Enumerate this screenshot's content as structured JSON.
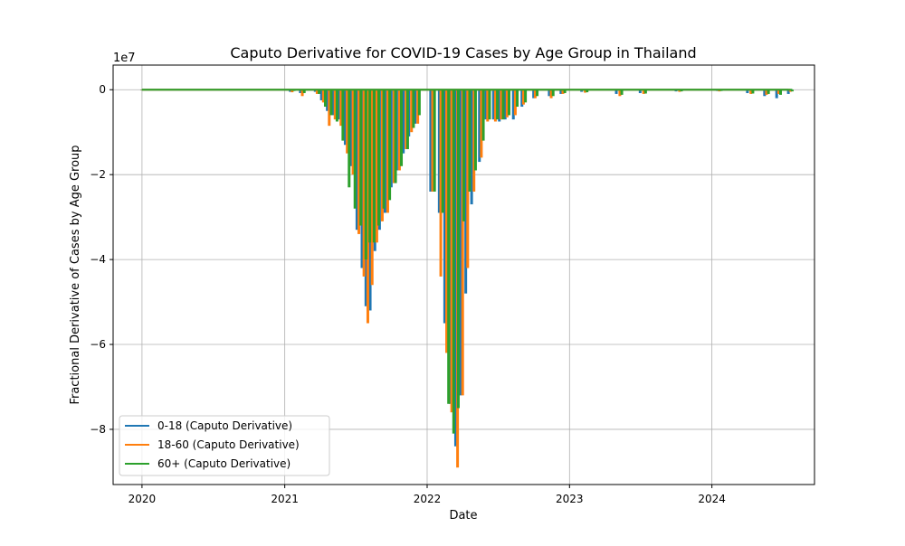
{
  "chart_data": {
    "type": "bar",
    "title": "Caputo Derivative for COVID-19 Cases by Age Group in Thailand",
    "xlabel": "Date",
    "ylabel": "Fractional Derivative of Cases by Age Group",
    "y_offset_label": "1e7",
    "y_scale": 10000000,
    "grid": true,
    "legend_position": "lower-left",
    "xlim": [
      "2019-10-19",
      "2024-09-20"
    ],
    "ylim": [
      -93000000,
      5800000
    ],
    "x_ticks": [
      {
        "date": "2020-01-01",
        "label": "2020"
      },
      {
        "date": "2021-01-01",
        "label": "2021"
      },
      {
        "date": "2022-01-01",
        "label": "2022"
      },
      {
        "date": "2023-01-01",
        "label": "2023"
      },
      {
        "date": "2024-01-01",
        "label": "2024"
      }
    ],
    "y_ticks": [
      {
        "value": 0,
        "label": "0"
      },
      {
        "value": -20000000,
        "label": "−2"
      },
      {
        "value": -40000000,
        "label": "−4"
      },
      {
        "value": -60000000,
        "label": "−6"
      },
      {
        "value": -80000000,
        "label": "−8"
      }
    ],
    "series": [
      {
        "name": "0-18 (Caputo Derivative)",
        "color": "#1f77b4",
        "points": [
          [
            "2020-01-01",
            0
          ],
          [
            "2020-06-01",
            0
          ],
          [
            "2020-12-20",
            0
          ],
          [
            "2021-01-15",
            -500000
          ],
          [
            "2021-02-10",
            -800000
          ],
          [
            "2021-03-20",
            -500000
          ],
          [
            "2021-04-05",
            -2500000
          ],
          [
            "2021-04-20",
            -5000000
          ],
          [
            "2021-05-05",
            -6000000
          ],
          [
            "2021-05-20",
            -7000000
          ],
          [
            "2021-06-05",
            -13000000
          ],
          [
            "2021-06-20",
            -18000000
          ],
          [
            "2021-07-05",
            -33000000
          ],
          [
            "2021-07-18",
            -42000000
          ],
          [
            "2021-07-28",
            -51000000
          ],
          [
            "2021-08-08",
            -52000000
          ],
          [
            "2021-08-20",
            -38000000
          ],
          [
            "2021-09-01",
            -33000000
          ],
          [
            "2021-09-15",
            -29000000
          ],
          [
            "2021-10-01",
            -23000000
          ],
          [
            "2021-10-15",
            -19000000
          ],
          [
            "2021-11-01",
            -15000000
          ],
          [
            "2021-11-15",
            -11000000
          ],
          [
            "2021-12-01",
            -8000000
          ],
          [
            "2022-01-10",
            -24000000
          ],
          [
            "2022-02-01",
            -29000000
          ],
          [
            "2022-02-15",
            -55000000
          ],
          [
            "2022-03-01",
            -74000000
          ],
          [
            "2022-03-15",
            -84000000
          ],
          [
            "2022-03-28",
            -72000000
          ],
          [
            "2022-04-10",
            -48000000
          ],
          [
            "2022-04-25",
            -27000000
          ],
          [
            "2022-05-15",
            -17000000
          ],
          [
            "2022-06-01",
            -7000000
          ],
          [
            "2022-06-20",
            -7000000
          ],
          [
            "2022-07-05",
            -7500000
          ],
          [
            "2022-07-20",
            -7000000
          ],
          [
            "2022-08-10",
            -7000000
          ],
          [
            "2022-09-01",
            -4000000
          ],
          [
            "2022-10-01",
            -2000000
          ],
          [
            "2022-11-10",
            -1500000
          ],
          [
            "2022-12-10",
            -1000000
          ],
          [
            "2023-02-01",
            -500000
          ],
          [
            "2023-05-01",
            -1000000
          ],
          [
            "2023-07-01",
            -800000
          ],
          [
            "2023-10-01",
            -400000
          ],
          [
            "2024-01-15",
            -300000
          ],
          [
            "2024-04-01",
            -800000
          ],
          [
            "2024-05-15",
            -1500000
          ],
          [
            "2024-06-15",
            -2000000
          ],
          [
            "2024-07-15",
            -1000000
          ]
        ]
      },
      {
        "name": "18-60 (Caputo Derivative)",
        "color": "#ff7f0e",
        "points": [
          [
            "2020-01-01",
            0
          ],
          [
            "2020-06-01",
            0
          ],
          [
            "2020-12-20",
            0
          ],
          [
            "2021-01-20",
            -600000
          ],
          [
            "2021-02-15",
            -1500000
          ],
          [
            "2021-03-25",
            -1000000
          ],
          [
            "2021-04-10",
            -3000000
          ],
          [
            "2021-04-25",
            -8500000
          ],
          [
            "2021-05-10",
            -7000000
          ],
          [
            "2021-05-25",
            -8500000
          ],
          [
            "2021-06-10",
            -15000000
          ],
          [
            "2021-06-25",
            -20000000
          ],
          [
            "2021-07-10",
            -34000000
          ],
          [
            "2021-07-23",
            -44000000
          ],
          [
            "2021-08-02",
            -55000000
          ],
          [
            "2021-08-13",
            -46000000
          ],
          [
            "2021-08-25",
            -36000000
          ],
          [
            "2021-09-08",
            -31000000
          ],
          [
            "2021-09-22",
            -29000000
          ],
          [
            "2021-10-08",
            -22000000
          ],
          [
            "2021-10-22",
            -19000000
          ],
          [
            "2021-11-08",
            -14000000
          ],
          [
            "2021-11-22",
            -10000000
          ],
          [
            "2021-12-08",
            -8000000
          ],
          [
            "2022-01-15",
            -24000000
          ],
          [
            "2022-02-05",
            -44000000
          ],
          [
            "2022-02-20",
            -62000000
          ],
          [
            "2022-03-05",
            -76000000
          ],
          [
            "2022-03-20",
            -89000000
          ],
          [
            "2022-04-02",
            -72000000
          ],
          [
            "2022-04-15",
            -42000000
          ],
          [
            "2022-05-01",
            -24000000
          ],
          [
            "2022-05-20",
            -16000000
          ],
          [
            "2022-06-05",
            -7500000
          ],
          [
            "2022-06-25",
            -7500000
          ],
          [
            "2022-07-10",
            -7000000
          ],
          [
            "2022-07-25",
            -6500000
          ],
          [
            "2022-08-15",
            -6000000
          ],
          [
            "2022-09-05",
            -3500000
          ],
          [
            "2022-10-05",
            -2000000
          ],
          [
            "2022-11-15",
            -2000000
          ],
          [
            "2022-12-15",
            -1000000
          ],
          [
            "2023-02-10",
            -700000
          ],
          [
            "2023-05-10",
            -1500000
          ],
          [
            "2023-07-10",
            -1000000
          ],
          [
            "2023-10-10",
            -500000
          ],
          [
            "2024-01-20",
            -400000
          ],
          [
            "2024-04-10",
            -1000000
          ],
          [
            "2024-05-20",
            -1200000
          ],
          [
            "2024-06-20",
            -1000000
          ],
          [
            "2024-07-20",
            -500000
          ]
        ]
      },
      {
        "name": "60+ (Caputo Derivative)",
        "color": "#2ca02c",
        "points": [
          [
            "2020-01-01",
            0
          ],
          [
            "2020-06-01",
            0
          ],
          [
            "2020-12-20",
            0
          ],
          [
            "2021-01-25",
            -300000
          ],
          [
            "2021-02-20",
            -800000
          ],
          [
            "2021-03-30",
            -1000000
          ],
          [
            "2021-04-15",
            -4000000
          ],
          [
            "2021-04-30",
            -6000000
          ],
          [
            "2021-05-15",
            -7500000
          ],
          [
            "2021-05-30",
            -12000000
          ],
          [
            "2021-06-15",
            -23000000
          ],
          [
            "2021-06-30",
            -28000000
          ],
          [
            "2021-07-15",
            -32000000
          ],
          [
            "2021-07-28",
            -40000000
          ],
          [
            "2021-08-07",
            -36000000
          ],
          [
            "2021-08-18",
            -36000000
          ],
          [
            "2021-08-30",
            -32000000
          ],
          [
            "2021-09-12",
            -28000000
          ],
          [
            "2021-09-27",
            -26000000
          ],
          [
            "2021-10-12",
            -22000000
          ],
          [
            "2021-10-27",
            -18000000
          ],
          [
            "2021-11-12",
            -14000000
          ],
          [
            "2021-11-27",
            -9000000
          ],
          [
            "2021-12-12",
            -6000000
          ],
          [
            "2022-01-20",
            -24000000
          ],
          [
            "2022-02-10",
            -29000000
          ],
          [
            "2022-02-25",
            -74000000
          ],
          [
            "2022-03-10",
            -81000000
          ],
          [
            "2022-03-22",
            -75000000
          ],
          [
            "2022-04-05",
            -31000000
          ],
          [
            "2022-04-20",
            -24000000
          ],
          [
            "2022-05-05",
            -19000000
          ],
          [
            "2022-05-25",
            -12000000
          ],
          [
            "2022-06-10",
            -7000000
          ],
          [
            "2022-06-30",
            -7000000
          ],
          [
            "2022-07-15",
            -7000000
          ],
          [
            "2022-07-30",
            -6000000
          ],
          [
            "2022-08-20",
            -4000000
          ],
          [
            "2022-09-10",
            -3000000
          ],
          [
            "2022-10-10",
            -1500000
          ],
          [
            "2022-11-20",
            -1500000
          ],
          [
            "2022-12-20",
            -800000
          ],
          [
            "2023-02-15",
            -600000
          ],
          [
            "2023-05-15",
            -1200000
          ],
          [
            "2023-07-15",
            -900000
          ],
          [
            "2023-10-15",
            -400000
          ],
          [
            "2024-01-25",
            -300000
          ],
          [
            "2024-04-15",
            -900000
          ],
          [
            "2024-05-25",
            -1000000
          ],
          [
            "2024-06-25",
            -1200000
          ],
          [
            "2024-07-25",
            -400000
          ]
        ]
      }
    ]
  }
}
